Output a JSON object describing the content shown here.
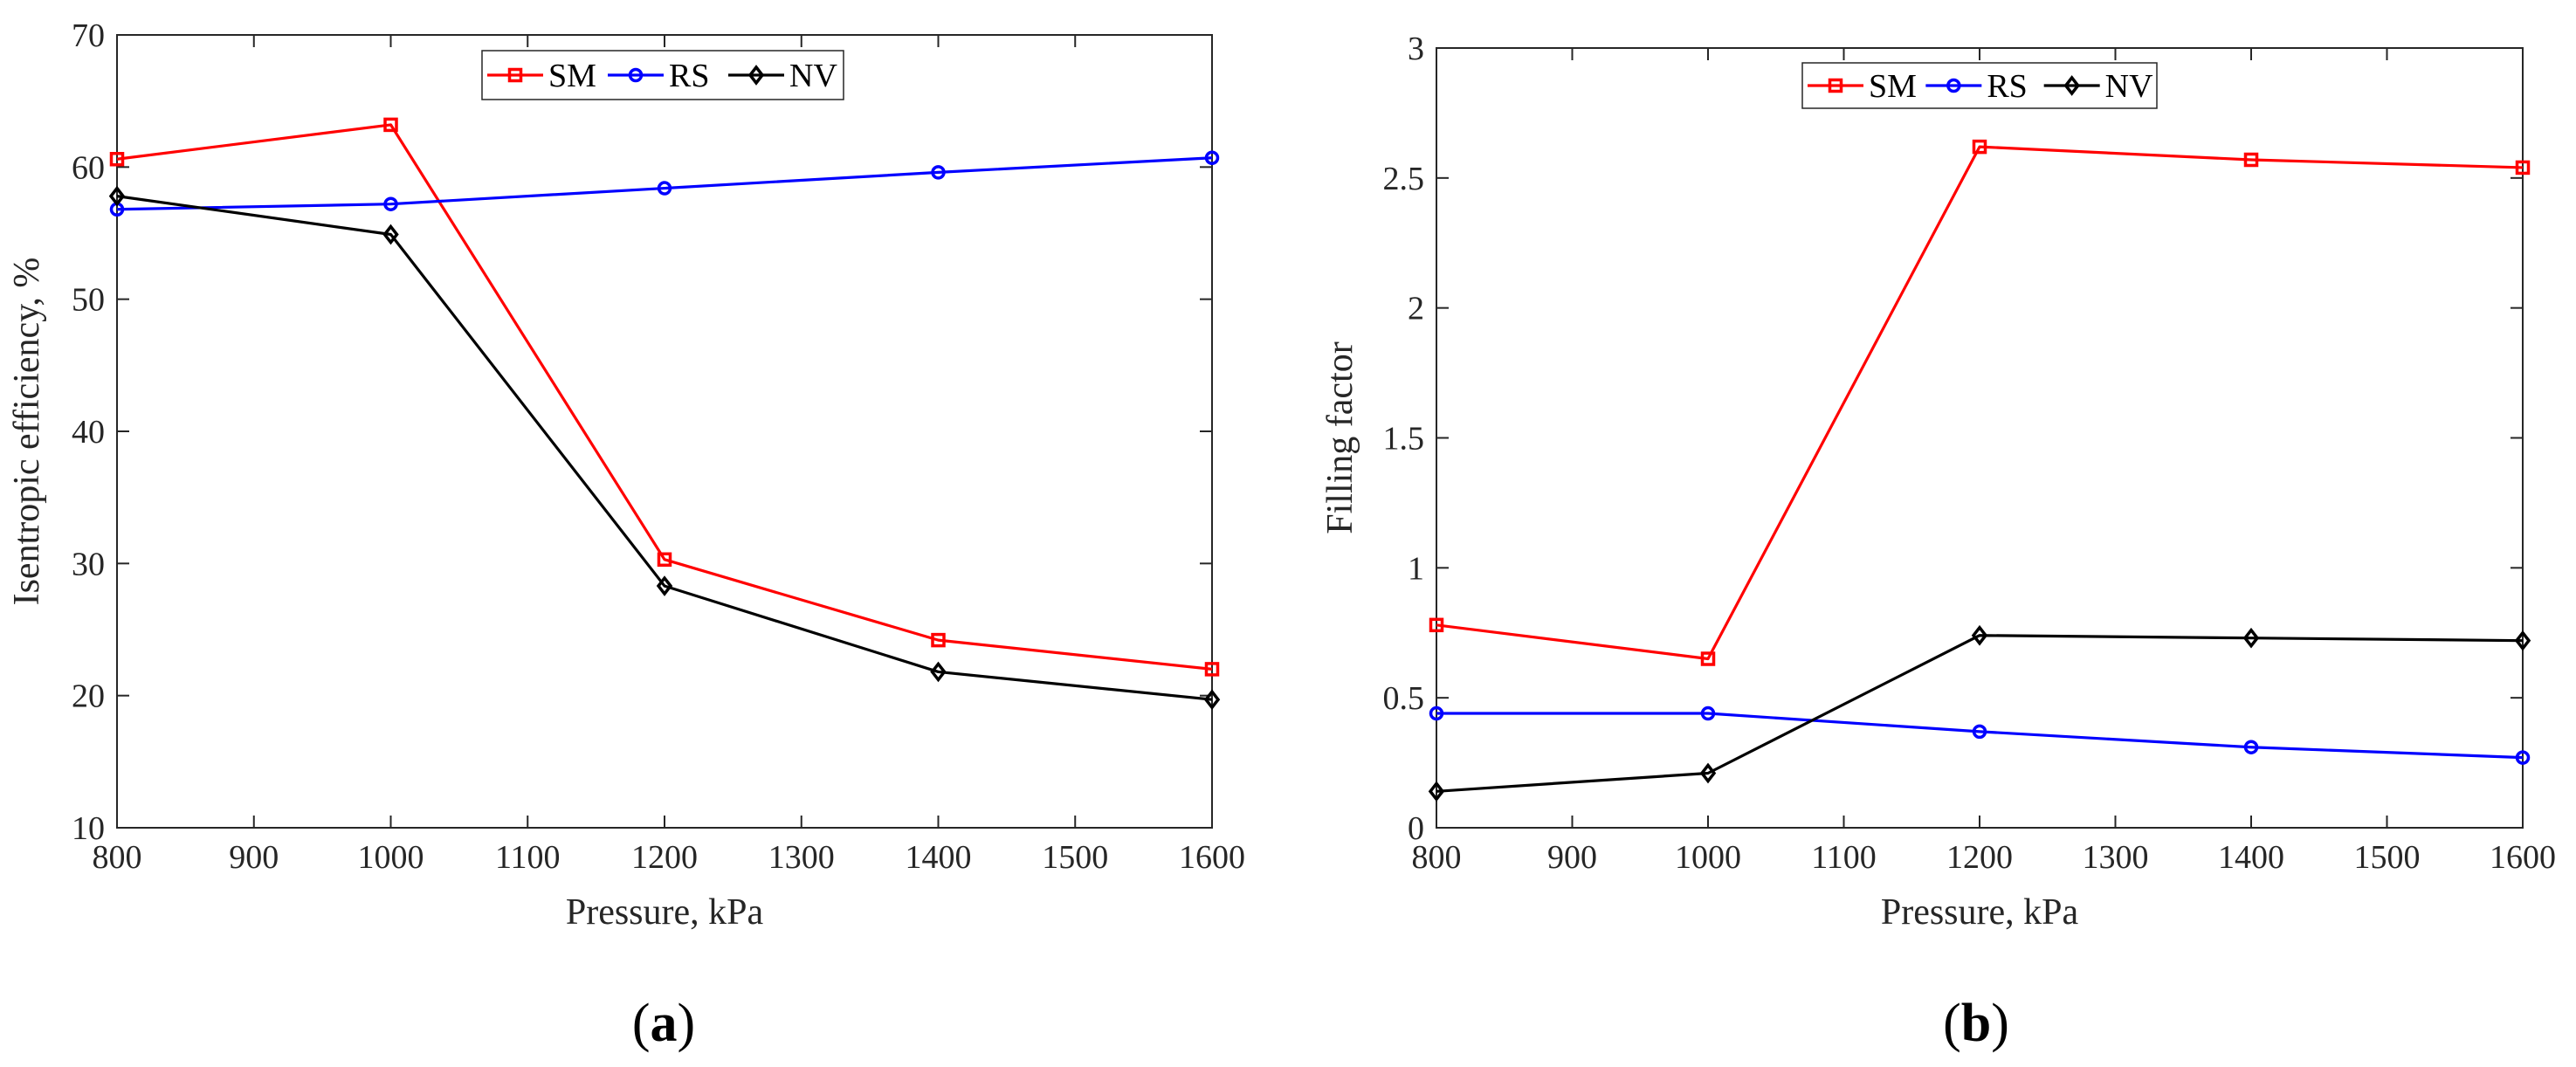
{
  "chart_data": [
    {
      "type": "line",
      "panel_label": "a",
      "xlabel": "Pressure, kPa",
      "ylabel": "Isentropic efficiency, %",
      "xlim": [
        800,
        1600
      ],
      "ylim": [
        10,
        70
      ],
      "xticks": [
        800,
        900,
        1000,
        1100,
        1200,
        1300,
        1400,
        1500,
        1600
      ],
      "yticks": [
        10,
        20,
        30,
        40,
        50,
        60,
        70
      ],
      "x": [
        800,
        1000,
        1200,
        1400,
        1600
      ],
      "legend_position": "top-center",
      "series": [
        {
          "name": "SM",
          "color": "#ff0000",
          "marker": "square",
          "values": [
            60.6,
            63.2,
            30.3,
            24.2,
            22.0
          ]
        },
        {
          "name": "RS",
          "color": "#0000ff",
          "marker": "circle",
          "values": [
            56.8,
            57.2,
            58.4,
            59.6,
            60.7
          ]
        },
        {
          "name": "NV",
          "color": "#000000",
          "marker": "diamond",
          "values": [
            57.8,
            54.9,
            28.3,
            21.8,
            19.7
          ]
        }
      ]
    },
    {
      "type": "line",
      "panel_label": "b",
      "xlabel": "Pressure, kPa",
      "ylabel": "Filling factor",
      "xlim": [
        800,
        1600
      ],
      "ylim": [
        0,
        3
      ],
      "xticks": [
        800,
        900,
        1000,
        1100,
        1200,
        1300,
        1400,
        1500,
        1600
      ],
      "yticks": [
        0,
        0.5,
        1,
        1.5,
        2,
        2.5,
        3
      ],
      "x": [
        800,
        1000,
        1200,
        1400,
        1600
      ],
      "legend_position": "top-center",
      "series": [
        {
          "name": "SM",
          "color": "#ff0000",
          "marker": "square",
          "values": [
            0.78,
            0.65,
            2.62,
            2.57,
            2.54
          ]
        },
        {
          "name": "RS",
          "color": "#0000ff",
          "marker": "circle",
          "values": [
            0.44,
            0.44,
            0.37,
            0.31,
            0.27
          ]
        },
        {
          "name": "NV",
          "color": "#000000",
          "marker": "diamond",
          "values": [
            0.14,
            0.21,
            0.74,
            0.73,
            0.72
          ]
        }
      ]
    }
  ]
}
